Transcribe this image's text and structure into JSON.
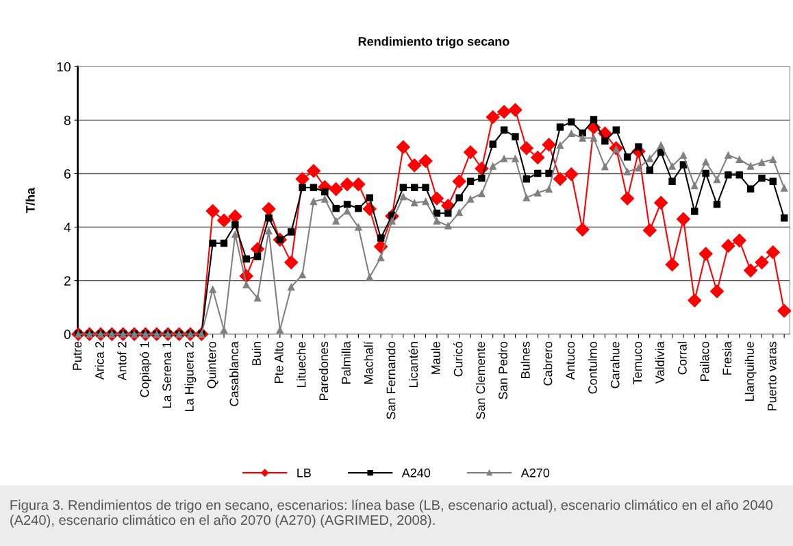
{
  "chart_data": {
    "type": "line",
    "title": "Rendimiento trigo secano",
    "ylabel": "T/ha",
    "categories": [
      "Putre",
      null,
      "Arica 2",
      null,
      "Antof 2",
      null,
      "Copiapó 1",
      null,
      "La Serena 1",
      null,
      "La Higuera 2",
      null,
      "Quintero",
      null,
      "Casablanca",
      null,
      "Buin",
      null,
      "Pte Alto",
      null,
      "Litueche",
      null,
      "Paredones",
      null,
      "Palmilla",
      null,
      "Machalí",
      null,
      "San Fernando",
      null,
      "Licantén",
      null,
      "Maule",
      null,
      "Curicó",
      null,
      "San Clemente",
      null,
      "San Pedro",
      null,
      "Bulnes",
      null,
      "Cabrero",
      null,
      "Antuco",
      null,
      "Contulmo",
      null,
      "Carahue",
      null,
      "Temuco",
      null,
      "Valdivia",
      null,
      "Corral",
      null,
      "Pailaco",
      null,
      "Fresia",
      null,
      "Llanquihue",
      null,
      "Puerto varas",
      null
    ],
    "series": [
      {
        "name": "LB",
        "color": "#ff0000",
        "marker": "diamond",
        "values": [
          0,
          0,
          0,
          0,
          0,
          0,
          0,
          0,
          0,
          0,
          0,
          0,
          4.6,
          4.25,
          4.4,
          2.17,
          3.18,
          4.68,
          3.53,
          2.68,
          5.8,
          6.1,
          5.5,
          5.42,
          5.6,
          5.6,
          4.68,
          3.27,
          4.41,
          6.99,
          6.31,
          6.47,
          5.07,
          4.8,
          5.71,
          6.8,
          6.19,
          8.11,
          8.31,
          8.38,
          6.95,
          6.6,
          7.08,
          5.8,
          5.98,
          3.91,
          7.73,
          7.5,
          6.95,
          5.07,
          6.83,
          3.88,
          4.91,
          2.6,
          4.3,
          1.26,
          3.0,
          1.6,
          3.3,
          3.5,
          2.38,
          2.68,
          3.06,
          0.87
        ]
      },
      {
        "name": "A240",
        "color": "#000000",
        "marker": "square",
        "values": [
          0,
          0,
          0,
          0,
          0,
          0,
          0,
          0,
          0,
          0,
          0,
          0,
          3.4,
          3.4,
          4.09,
          2.81,
          2.9,
          4.34,
          3.53,
          3.82,
          5.48,
          5.48,
          5.32,
          4.7,
          4.85,
          4.7,
          5.1,
          3.59,
          4.44,
          5.48,
          5.48,
          5.48,
          4.52,
          4.52,
          5.1,
          5.71,
          5.83,
          7.1,
          7.63,
          7.38,
          5.8,
          6.01,
          6.01,
          7.74,
          7.93,
          7.52,
          8.02,
          7.22,
          7.63,
          6.62,
          7.0,
          6.13,
          6.8,
          5.71,
          6.33,
          4.59,
          6.01,
          4.85,
          5.95,
          5.95,
          5.43,
          5.83,
          5.71,
          4.34
        ]
      },
      {
        "name": "A270",
        "color": "#808080",
        "marker": "triangle",
        "values": [
          0,
          0,
          0,
          0,
          0,
          0,
          0,
          0,
          0,
          0,
          0,
          0,
          1.67,
          0.16,
          3.73,
          1.85,
          1.35,
          3.86,
          0.16,
          1.76,
          2.22,
          4.96,
          5.05,
          4.23,
          4.6,
          4.0,
          2.13,
          2.86,
          4.23,
          5.14,
          4.91,
          4.96,
          4.23,
          4.05,
          4.55,
          5.05,
          5.25,
          6.28,
          6.56,
          6.56,
          5.1,
          5.28,
          5.42,
          7.06,
          7.5,
          7.33,
          7.33,
          6.26,
          6.92,
          6.07,
          6.21,
          6.56,
          7.06,
          6.28,
          6.69,
          5.55,
          6.44,
          5.78,
          6.69,
          6.53,
          6.28,
          6.42,
          6.53,
          5.46
        ]
      }
    ],
    "ylim": [
      0,
      10
    ],
    "yticks": [
      0,
      2,
      4,
      6,
      8,
      10
    ],
    "grid": "y",
    "legend": "bottom",
    "line_style": "solid",
    "annotations": [
      "Figura 3. Rendimientos de trigo en secano, escenarios: línea base (LB, escenario actual), escenario climático en el año 2040 (A240), escenario climático en el año 2070 (A270) (AGRIMED, 2008)."
    ]
  }
}
